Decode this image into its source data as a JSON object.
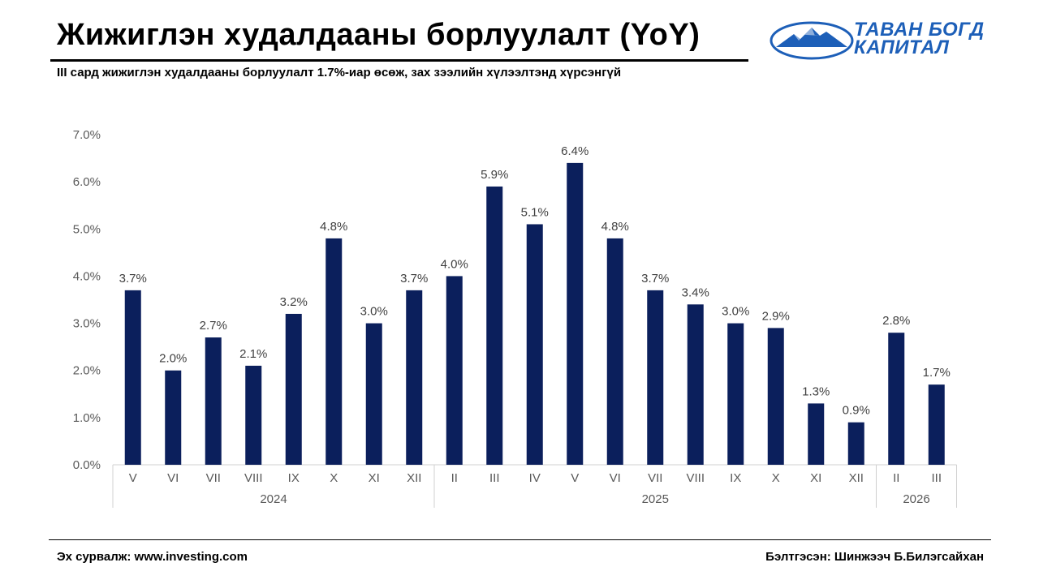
{
  "header": {
    "title": "Жижиглэн худалдааны борлуулалт (YoY)",
    "subtitle": "III сард жижиглэн худалдааны борлуулалт  1.7%-иар өсөж, зах зээлийн хүлээлтэнд хүрсэнгүй"
  },
  "logo": {
    "line1": "ТАВАН БОГД",
    "line2": "КАПИТАЛ",
    "color": "#1d5fb8"
  },
  "footer": {
    "source": "Эх сурвалж: www.investing.com",
    "author": "Бэлтгэсэн: Шинжээч Б.Билэгсайхан"
  },
  "chart_data": {
    "type": "bar",
    "title": "Жижиглэн худалдааны борлуулалт (YoY)",
    "categories": [
      "V",
      "VI",
      "VII",
      "VIII",
      "IX",
      "X",
      "XI",
      "XII",
      "II",
      "III",
      "IV",
      "V",
      "VI",
      "VII",
      "VIII",
      "IX",
      "X",
      "XI",
      "XII",
      "II",
      "III"
    ],
    "values": [
      3.7,
      2.0,
      2.7,
      2.1,
      3.2,
      4.8,
      3.0,
      3.7,
      4.0,
      5.9,
      5.1,
      6.4,
      4.8,
      3.7,
      3.4,
      3.0,
      2.9,
      1.3,
      0.9,
      2.8,
      1.7
    ],
    "value_labels": [
      "3.7%",
      "2.0%",
      "2.7%",
      "2.1%",
      "3.2%",
      "4.8%",
      "3.0%",
      "3.7%",
      "4.0%",
      "5.9%",
      "5.1%",
      "6.4%",
      "4.8%",
      "3.7%",
      "3.4%",
      "3.0%",
      "2.9%",
      "1.3%",
      "0.9%",
      "2.8%",
      "1.7%"
    ],
    "groups": [
      {
        "label": "2024",
        "count": 8
      },
      {
        "label": "2025",
        "count": 11
      },
      {
        "label": "2026",
        "count": 2
      }
    ],
    "y_ticks": [
      "0.0%",
      "1.0%",
      "2.0%",
      "3.0%",
      "4.0%",
      "5.0%",
      "6.0%",
      "7.0%"
    ],
    "ylim": [
      0,
      7
    ],
    "xlabel": "",
    "ylabel": "",
    "grid": false,
    "bar_color": "#0b1f5c"
  }
}
